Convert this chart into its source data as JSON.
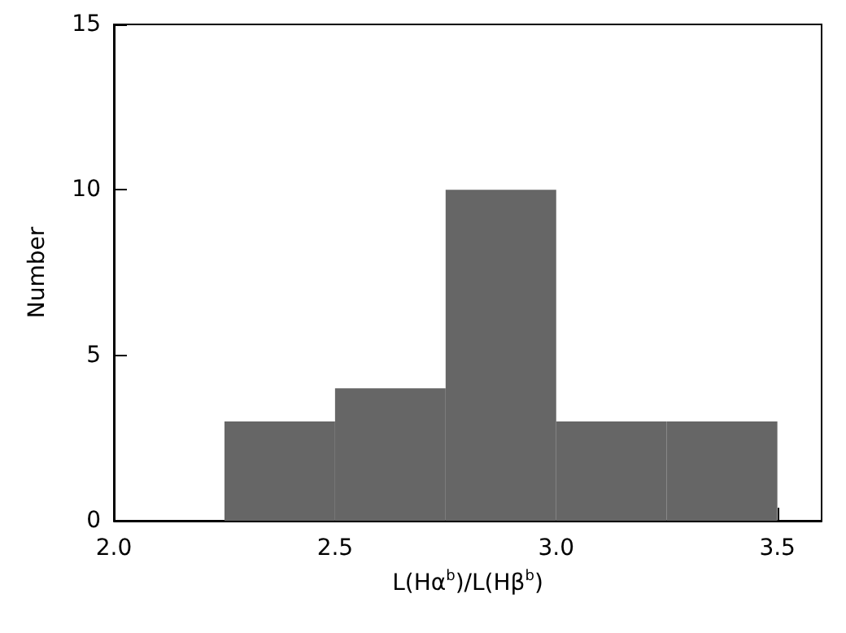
{
  "chart_data": {
    "type": "histogram",
    "xlabel": "L(Hα$^{b}$)/L(Hβ$^{b}$)",
    "ylabel": "Number",
    "bins": [
      2.25,
      2.5,
      2.75,
      3.0,
      3.25,
      3.5
    ],
    "values": [
      3,
      4,
      10,
      3,
      3
    ],
    "color": "#666666",
    "xlim": [
      2.0,
      3.6
    ],
    "xticks": [
      {
        "value": 2,
        "label": "2.0"
      },
      2.5,
      {
        "value": 3,
        "label": "3.0"
      },
      {
        "value": 3.5,
        "label": "3.5"
      }
    ],
    "ylim": [
      0,
      15
    ],
    "yticks": [
      0,
      5,
      10,
      15
    ],
    "grid": false
  }
}
